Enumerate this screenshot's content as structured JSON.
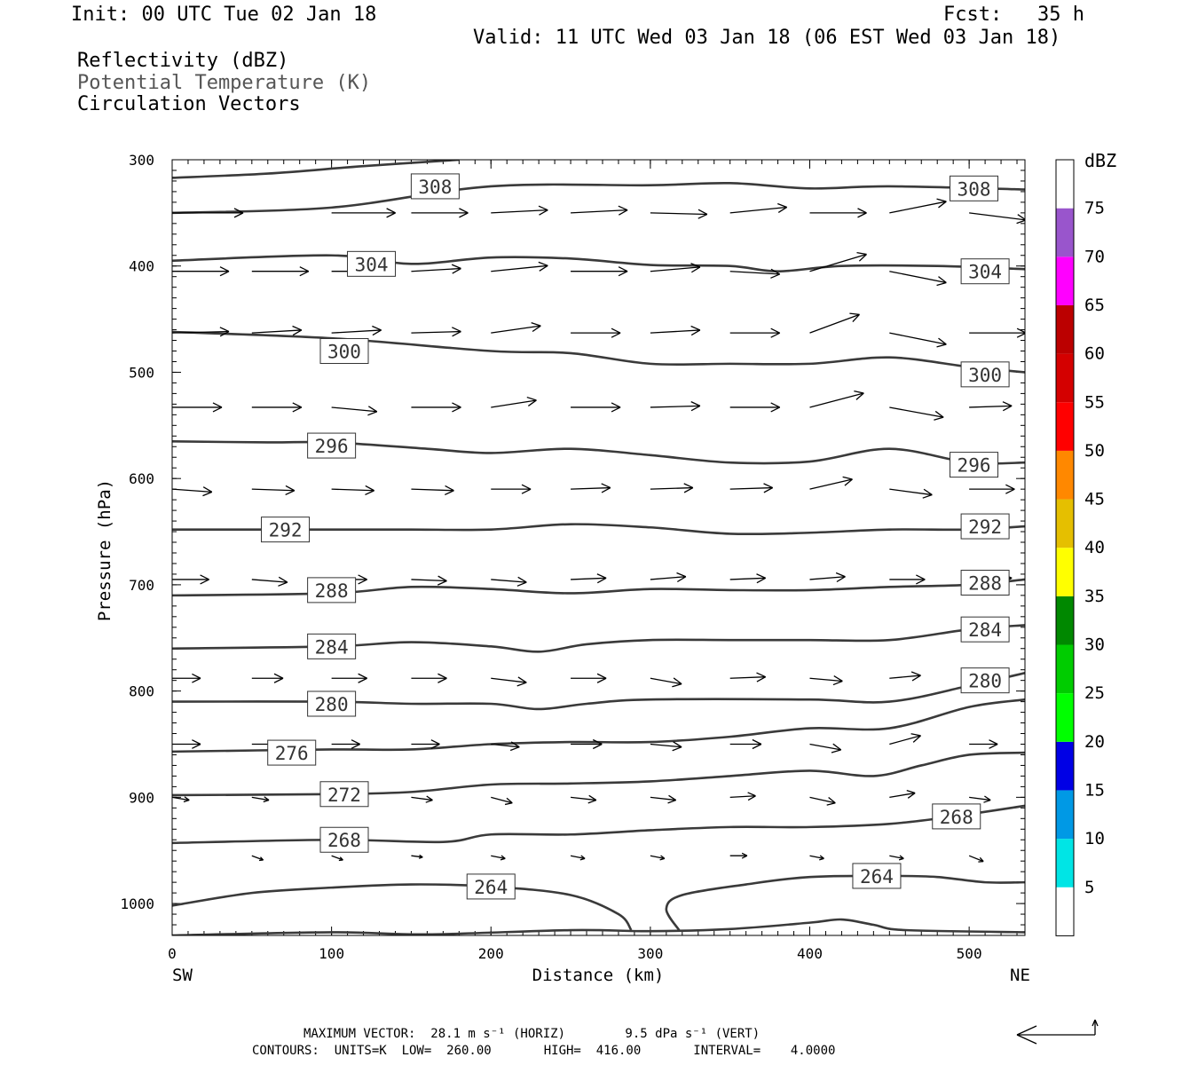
{
  "header": {
    "init": "Init: 00 UTC Tue 02 Jan 18",
    "fcst": "Fcst:   35 h",
    "valid": "Valid: 11 UTC Wed 03 Jan 18 (06 EST Wed 03 Jan 18)",
    "fields": [
      "Reflectivity (dBZ)",
      "Potential Temperature (K)",
      "Circulation Vectors"
    ]
  },
  "footer": {
    "max_vector": "MAXIMUM VECTOR:  28.1 m s⁻¹ (HORIZ)        9.5 dPa s⁻¹ (VERT)",
    "contours": "CONTOURS:  UNITS=K  LOW=  260.00       HIGH=  416.00       INTERVAL=    4.0000"
  },
  "colors": {
    "contour": "#3a3a3a",
    "colorbar": [
      "#ffffff",
      "#00e5e5",
      "#0099e5",
      "#0000e5",
      "#00ff00",
      "#00cc00",
      "#008800",
      "#ffff00",
      "#e5bf00",
      "#ff8800",
      "#ff0000",
      "#d40000",
      "#bb0000",
      "#ff00ff",
      "#9955cc",
      "#ffffff"
    ]
  },
  "chart_data": {
    "type": "cross-section",
    "xlabel": "Distance (km)",
    "ylabel": "Pressure (hPa)",
    "xlim": [
      0,
      535
    ],
    "ylim": [
      300,
      1030
    ],
    "x_ticks": [
      0,
      100,
      200,
      300,
      400,
      500
    ],
    "y_ticks": [
      300,
      400,
      500,
      600,
      700,
      800,
      900,
      1000
    ],
    "x_end_labels": {
      "left": "SW",
      "right": "NE"
    },
    "colorbar": {
      "title": "dBZ",
      "levels": [
        5,
        10,
        15,
        20,
        25,
        30,
        35,
        40,
        45,
        50,
        55,
        60,
        65,
        70,
        75
      ]
    },
    "contours": [
      {
        "theta": 308,
        "points": [
          [
            0,
            317
          ],
          [
            60,
            313
          ],
          [
            120,
            306
          ],
          [
            180,
            300
          ]
        ]
      },
      {
        "theta": 308,
        "points": [
          [
            0,
            350
          ],
          [
            100,
            345
          ],
          [
            200,
            325
          ],
          [
            300,
            324
          ],
          [
            350,
            322
          ],
          [
            400,
            327
          ],
          [
            450,
            325
          ],
          [
            535,
            328
          ]
        ]
      },
      {
        "theta": 304,
        "points": [
          [
            0,
            395
          ],
          [
            100,
            390
          ],
          [
            150,
            398
          ],
          [
            200,
            392
          ],
          [
            250,
            393
          ],
          [
            300,
            399
          ],
          [
            350,
            400
          ],
          [
            380,
            405
          ],
          [
            420,
            400
          ],
          [
            480,
            400
          ],
          [
            535,
            403
          ]
        ]
      },
      {
        "theta": 300,
        "points": [
          [
            0,
            462
          ],
          [
            100,
            468
          ],
          [
            200,
            480
          ],
          [
            250,
            482
          ],
          [
            300,
            492
          ],
          [
            350,
            492
          ],
          [
            400,
            492
          ],
          [
            450,
            486
          ],
          [
            500,
            495
          ],
          [
            535,
            500
          ]
        ]
      },
      {
        "theta": 296,
        "points": [
          [
            0,
            565
          ],
          [
            60,
            566
          ],
          [
            100,
            566
          ],
          [
            160,
            572
          ],
          [
            200,
            576
          ],
          [
            250,
            572
          ],
          [
            300,
            578
          ],
          [
            350,
            585
          ],
          [
            400,
            584
          ],
          [
            450,
            572
          ],
          [
            500,
            585
          ],
          [
            535,
            585
          ]
        ]
      },
      {
        "theta": 292,
        "points": [
          [
            0,
            648
          ],
          [
            100,
            648
          ],
          [
            150,
            648
          ],
          [
            200,
            648
          ],
          [
            250,
            643
          ],
          [
            300,
            646
          ],
          [
            350,
            652
          ],
          [
            400,
            651
          ],
          [
            450,
            648
          ],
          [
            500,
            648
          ],
          [
            535,
            645
          ]
        ]
      },
      {
        "theta": 288,
        "points": [
          [
            0,
            710
          ],
          [
            100,
            708
          ],
          [
            150,
            702
          ],
          [
            200,
            704
          ],
          [
            250,
            708
          ],
          [
            300,
            704
          ],
          [
            350,
            705
          ],
          [
            400,
            705
          ],
          [
            450,
            702
          ],
          [
            500,
            700
          ],
          [
            535,
            695
          ]
        ]
      },
      {
        "theta": 284,
        "points": [
          [
            0,
            760
          ],
          [
            100,
            758
          ],
          [
            150,
            754
          ],
          [
            200,
            758
          ],
          [
            230,
            763
          ],
          [
            260,
            756
          ],
          [
            300,
            752
          ],
          [
            350,
            752
          ],
          [
            400,
            752
          ],
          [
            450,
            752
          ],
          [
            500,
            742
          ],
          [
            535,
            738
          ]
        ]
      },
      {
        "theta": 280,
        "points": [
          [
            0,
            810
          ],
          [
            100,
            810
          ],
          [
            150,
            812
          ],
          [
            200,
            812
          ],
          [
            230,
            817
          ],
          [
            260,
            812
          ],
          [
            300,
            808
          ],
          [
            400,
            808
          ],
          [
            450,
            810
          ],
          [
            500,
            795
          ],
          [
            535,
            783
          ]
        ]
      },
      {
        "theta": 276,
        "points": [
          [
            0,
            857
          ],
          [
            100,
            855
          ],
          [
            150,
            855
          ],
          [
            200,
            850
          ],
          [
            250,
            848
          ],
          [
            300,
            848
          ],
          [
            350,
            843
          ],
          [
            400,
            835
          ],
          [
            450,
            835
          ],
          [
            500,
            815
          ],
          [
            535,
            808
          ]
        ]
      },
      {
        "theta": 272,
        "points": [
          [
            0,
            898
          ],
          [
            100,
            897
          ],
          [
            150,
            895
          ],
          [
            200,
            888
          ],
          [
            250,
            887
          ],
          [
            300,
            885
          ],
          [
            350,
            880
          ],
          [
            400,
            875
          ],
          [
            440,
            880
          ],
          [
            470,
            870
          ],
          [
            500,
            860
          ],
          [
            535,
            858
          ]
        ]
      },
      {
        "theta": 268,
        "points": [
          [
            0,
            943
          ],
          [
            100,
            940
          ],
          [
            170,
            942
          ],
          [
            200,
            935
          ],
          [
            250,
            935
          ],
          [
            300,
            931
          ],
          [
            350,
            928
          ],
          [
            400,
            928
          ],
          [
            450,
            925
          ],
          [
            490,
            918
          ],
          [
            535,
            908
          ]
        ]
      },
      {
        "theta": 264,
        "points": [
          [
            0,
            1002
          ],
          [
            50,
            990
          ],
          [
            100,
            985
          ],
          [
            150,
            982
          ],
          [
            200,
            984
          ],
          [
            250,
            992
          ],
          [
            280,
            1010
          ],
          [
            288,
            1025
          ]
        ]
      },
      {
        "theta": 264,
        "points": [
          [
            318,
            1025
          ],
          [
            310,
            1005
          ],
          [
            320,
            992
          ],
          [
            360,
            982
          ],
          [
            400,
            975
          ],
          [
            450,
            974
          ],
          [
            480,
            975
          ],
          [
            510,
            980
          ],
          [
            535,
            980
          ]
        ]
      },
      {
        "theta": 264,
        "points": [
          [
            0,
            1030
          ],
          [
            100,
            1027
          ],
          [
            160,
            1029
          ],
          [
            250,
            1025
          ],
          [
            300,
            1026
          ],
          [
            350,
            1024
          ],
          [
            400,
            1018
          ],
          [
            420,
            1015
          ],
          [
            440,
            1020
          ],
          [
            460,
            1025
          ],
          [
            535,
            1027
          ]
        ]
      }
    ],
    "contour_labels": [
      {
        "text": "308",
        "x": 165,
        "p": 325
      },
      {
        "text": "308",
        "x": 503,
        "p": 327
      },
      {
        "text": "304",
        "x": 125,
        "p": 398
      },
      {
        "text": "304",
        "x": 510,
        "p": 405
      },
      {
        "text": "300",
        "x": 108,
        "p": 480
      },
      {
        "text": "300",
        "x": 510,
        "p": 502
      },
      {
        "text": "296",
        "x": 100,
        "p": 569
      },
      {
        "text": "296",
        "x": 503,
        "p": 587
      },
      {
        "text": "292",
        "x": 71,
        "p": 648
      },
      {
        "text": "292",
        "x": 510,
        "p": 645
      },
      {
        "text": "288",
        "x": 100,
        "p": 705
      },
      {
        "text": "288",
        "x": 510,
        "p": 698
      },
      {
        "text": "284",
        "x": 100,
        "p": 758
      },
      {
        "text": "284",
        "x": 510,
        "p": 742
      },
      {
        "text": "280",
        "x": 100,
        "p": 812
      },
      {
        "text": "280",
        "x": 510,
        "p": 790
      },
      {
        "text": "276",
        "x": 75,
        "p": 858
      },
      {
        "text": "272",
        "x": 108,
        "p": 897
      },
      {
        "text": "268",
        "x": 492,
        "p": 918
      },
      {
        "text": "268",
        "x": 108,
        "p": 940
      },
      {
        "text": "264",
        "x": 200,
        "p": 984
      },
      {
        "text": "264",
        "x": 442,
        "p": 974
      }
    ],
    "vectors": [
      {
        "p": 350,
        "x": [
          0,
          100,
          150,
          200,
          250,
          300,
          350,
          400,
          450,
          500
        ],
        "u": [
          50,
          45,
          40,
          40,
          40,
          40,
          40,
          40,
          40,
          40
        ],
        "w": [
          0,
          0,
          0,
          -2,
          -2,
          1,
          -4,
          0,
          -8,
          5
        ]
      },
      {
        "p": 405,
        "x": [
          0,
          50,
          100,
          150,
          200,
          250,
          300,
          350,
          400,
          450
        ],
        "u": [
          40,
          40,
          40,
          35,
          40,
          40,
          35,
          35,
          40,
          40
        ],
        "w": [
          0,
          0,
          0,
          -2,
          -4,
          0,
          -3,
          2,
          -12,
          8
        ]
      },
      {
        "p": 463,
        "x": [
          0,
          50,
          100,
          150,
          200,
          250,
          300,
          350,
          400,
          450,
          500
        ],
        "u": [
          40,
          35,
          35,
          35,
          35,
          35,
          35,
          35,
          35,
          40,
          40
        ],
        "w": [
          -1,
          -2,
          -2,
          -1,
          -5,
          0,
          -2,
          0,
          -13,
          8,
          0
        ]
      },
      {
        "p": 533,
        "x": [
          0,
          50,
          100,
          150,
          200,
          250,
          300,
          350,
          400,
          450,
          500
        ],
        "u": [
          35,
          35,
          32,
          35,
          32,
          35,
          35,
          35,
          38,
          38,
          30
        ],
        "w": [
          0,
          0,
          3,
          0,
          -5,
          0,
          -1,
          0,
          -10,
          7,
          -1
        ]
      },
      {
        "p": 610,
        "x": [
          0,
          50,
          100,
          150,
          200,
          250,
          300,
          350,
          400,
          450,
          500
        ],
        "u": [
          28,
          30,
          30,
          30,
          28,
          28,
          30,
          30,
          30,
          30,
          32
        ],
        "w": [
          2,
          1,
          1,
          1,
          0,
          -1,
          -1,
          -1,
          -7,
          4,
          0
        ]
      },
      {
        "p": 695,
        "x": [
          0,
          50,
          100,
          150,
          200,
          250,
          300,
          350,
          400,
          450,
          500
        ],
        "u": [
          26,
          25,
          25,
          25,
          25,
          25,
          25,
          25,
          25,
          25,
          30
        ],
        "w": [
          0,
          2,
          0,
          1,
          2,
          -1,
          -2,
          -1,
          -2,
          0,
          -1
        ]
      },
      {
        "p": 788,
        "x": [
          0,
          50,
          100,
          150,
          200,
          250,
          300,
          350,
          400,
          450,
          500
        ],
        "u": [
          20,
          22,
          25,
          25,
          25,
          25,
          22,
          25,
          23,
          22,
          25
        ],
        "w": [
          0,
          0,
          0,
          0,
          3,
          0,
          4,
          -1,
          2,
          -2,
          0
        ]
      },
      {
        "p": 850,
        "x": [
          0,
          50,
          100,
          150,
          200,
          250,
          300,
          350,
          400,
          450,
          500
        ],
        "u": [
          20,
          18,
          20,
          20,
          20,
          22,
          22,
          22,
          22,
          22,
          20
        ],
        "w": [
          0,
          0,
          0,
          0,
          2,
          0,
          2,
          0,
          4,
          -6,
          0
        ]
      },
      {
        "p": 900,
        "x": [
          0,
          50,
          100,
          150,
          200,
          250,
          300,
          350,
          400,
          450,
          500
        ],
        "u": [
          12,
          12,
          15,
          15,
          15,
          18,
          18,
          18,
          18,
          18,
          15
        ],
        "w": [
          2,
          2,
          2,
          2,
          4,
          2,
          2,
          -1,
          4,
          -3,
          2
        ]
      },
      {
        "p": 955,
        "x": [
          50,
          100,
          150,
          200,
          250,
          300,
          350,
          400,
          450,
          500
        ],
        "u": [
          8,
          8,
          8,
          10,
          10,
          10,
          12,
          10,
          10,
          10
        ],
        "w": [
          3,
          3,
          1,
          2,
          2,
          2,
          0,
          2,
          2,
          4
        ]
      }
    ]
  }
}
